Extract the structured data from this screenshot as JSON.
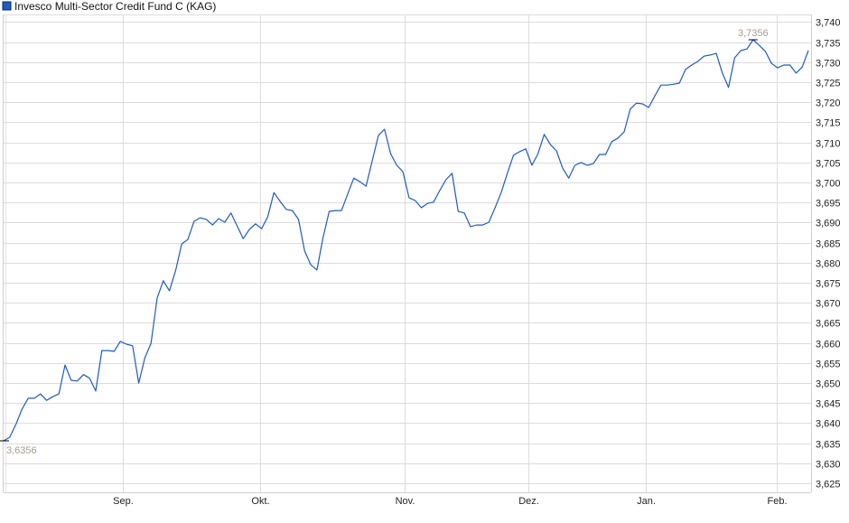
{
  "chart_data": {
    "type": "line",
    "title": "Invesco Multi-Sector Credit Fund C (KAG)",
    "legend": {
      "name": "Invesco Multi-Sector Credit Fund C (KAG)",
      "color": "#1f5bc0",
      "placement": "top-left"
    },
    "xlabel": "",
    "ylabel": "",
    "x_tick_labels": [
      "Sep.",
      "Okt.",
      "Nov.",
      "Dez.",
      "Jan.",
      "Feb."
    ],
    "y_ticks": [
      "3,625",
      "3,630",
      "3,635",
      "3,640",
      "3,645",
      "3,650",
      "3,655",
      "3,660",
      "3,665",
      "3,670",
      "3,675",
      "3,680",
      "3,685",
      "3,690",
      "3,695",
      "3,700",
      "3,705",
      "3,710",
      "3,715",
      "3,720",
      "3,725",
      "3,730",
      "3,735",
      "3,740"
    ],
    "ylim": [
      3.625,
      3.74
    ],
    "y_axis_side": "right",
    "grid": true,
    "series_color": "#1f5bc0",
    "annotations": {
      "min_label": "3,6356",
      "max_label": "3,7356"
    },
    "series": [
      {
        "name": "Invesco Multi-Sector Credit Fund C (KAG)",
        "values": [
          3.6356,
          3.6365,
          3.6397,
          3.6435,
          3.6462,
          3.6462,
          3.6473,
          3.6457,
          3.6466,
          3.6473,
          3.6545,
          3.6507,
          3.6505,
          3.6521,
          3.6512,
          3.648,
          3.6581,
          3.6581,
          3.6579,
          3.6604,
          3.6597,
          3.6593,
          3.65,
          3.6563,
          3.6599,
          3.6712,
          3.6755,
          3.673,
          3.678,
          3.6847,
          3.6858,
          3.6903,
          3.6912,
          3.6908,
          3.6894,
          3.691,
          3.6901,
          3.6924,
          3.6892,
          3.686,
          3.6883,
          3.6897,
          3.6885,
          3.6915,
          3.6975,
          3.6953,
          3.6933,
          3.693,
          3.6908,
          3.6829,
          3.6795,
          3.6782,
          3.6863,
          3.6928,
          3.693,
          3.693,
          3.6971,
          3.7011,
          3.7002,
          3.6991,
          3.7054,
          3.7117,
          3.7133,
          3.7072,
          3.7043,
          3.7027,
          3.6962,
          3.6955,
          3.6937,
          3.6948,
          3.6951,
          3.698,
          3.7007,
          3.7023,
          3.6928,
          3.6924,
          3.689,
          3.6894,
          3.6894,
          3.6901,
          3.6937,
          3.6975,
          3.7023,
          3.7068,
          3.7077,
          3.7084,
          3.7043,
          3.7072,
          3.712,
          3.7095,
          3.7079,
          3.7036,
          3.7011,
          3.7043,
          3.705,
          3.7043,
          3.7047,
          3.707,
          3.707,
          3.7102,
          3.7111,
          3.7126,
          3.7183,
          3.7198,
          3.7196,
          3.7187,
          3.7216,
          3.7243,
          3.7243,
          3.7245,
          3.7248,
          3.7282,
          3.7293,
          3.7302,
          3.7315,
          3.7318,
          3.7322,
          3.7273,
          3.7237,
          3.7311,
          3.7329,
          3.7333,
          3.7356,
          3.7342,
          3.7327,
          3.7297,
          3.7286,
          3.7293,
          3.7293,
          3.7273,
          3.7288,
          3.7329
        ]
      }
    ]
  }
}
